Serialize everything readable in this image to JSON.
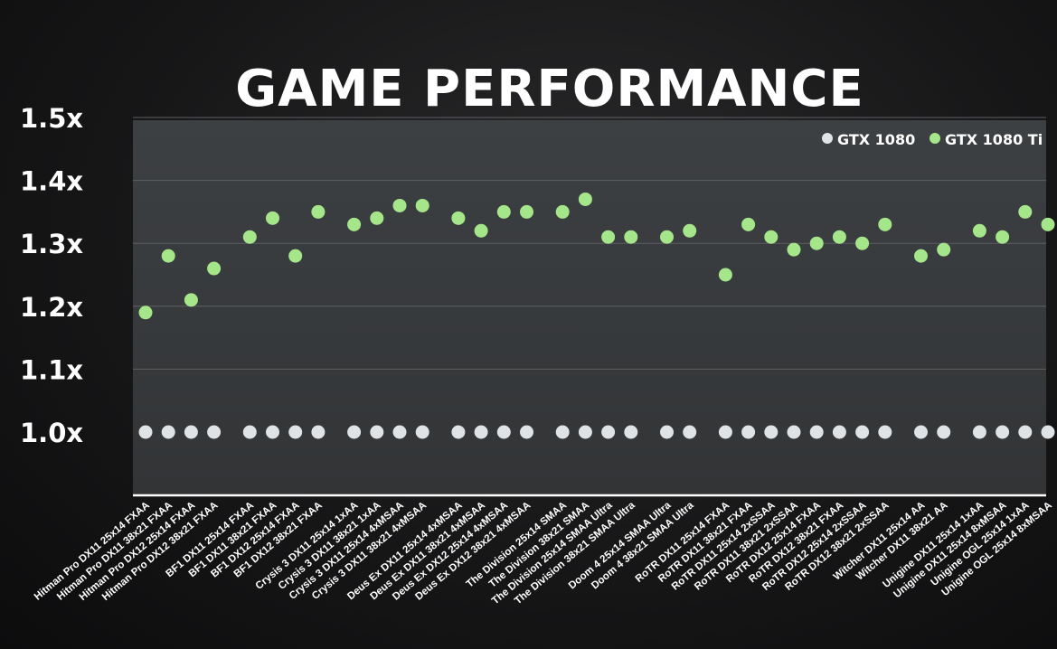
{
  "chart_data": {
    "type": "scatter",
    "title": "GAME PERFORMANCE",
    "xlabel": "",
    "ylabel": "",
    "ylim": [
      1.0,
      1.5
    ],
    "yticks": [
      "1.0x",
      "1.1x",
      "1.2x",
      "1.3x",
      "1.4x",
      "1.5x"
    ],
    "ytick_values": [
      1.0,
      1.1,
      1.2,
      1.3,
      1.4,
      1.5
    ],
    "grid": true,
    "legend_position": "top-right",
    "categories": [
      "Hitman Pro DX11 25x14 FXAA",
      "Hitman Pro DX11 38x21 FXAA",
      "Hitman Pro DX12 25x14 FXAA",
      "Hitman Pro DX12 38x21 FXAA",
      "BF1 DX11 25x14 FXAA",
      "BF1 DX11 38x21 FXAA",
      "BF1 DX12 25x14 FXAA",
      "BF1 DX12 38x21 FXAA",
      "Crysis 3 DX11 25x14 1xAA",
      "Crysis 3 DX11 38x21 1xAA",
      "Crysis 3 DX11 25x14 4xMSAA",
      "Crysis 3 DX11 38x21 4xMSAA",
      "Deus Ex DX11 25x14 4xMSAA",
      "Deus Ex DX11 38x21 4xMSAA",
      "Deus Ex DX12 25x14 4xMSAA",
      "Deus Ex DX12 38x21 4xMSAA",
      "The Division 25x14 SMAA",
      "The Division 38x21 SMAA",
      "The Division 25x14 SMAA Ultra",
      "The Division 38x21 SMAA Ultra",
      "Doom 4 25x14 SMAA Ultra",
      "Doom 4 38x21 SMAA Ultra",
      "RoTR DX11 25x14 FXAA",
      "RoTR DX11 38x21 FXAA",
      "RoTR DX11 25x14 2xSSAA",
      "RoTR DX11 38x21 2xSSAA",
      "RoTR DX12 25x14 FXAA",
      "RoTR DX12 38x21 FXAA",
      "RoTR DX12 25x14 2xSSAA",
      "RoTR DX12 38x21 2xSSAA",
      "Witcher DX11 25x14 AA",
      "Witcher DX11 38x21 AA",
      "Unigine DX11 25x14 1xAA",
      "Unigine DX11 25x14 8xMSAA",
      "Unigine OGL 25x14 1xAA",
      "Unigine OGL 25x14 8xMSAA"
    ],
    "groups": [
      4,
      4,
      4,
      4,
      4,
      2,
      8,
      2,
      4
    ],
    "series": [
      {
        "name": "GTX 1080",
        "color": "#dfe3e6",
        "values": [
          1.0,
          1.0,
          1.0,
          1.0,
          1.0,
          1.0,
          1.0,
          1.0,
          1.0,
          1.0,
          1.0,
          1.0,
          1.0,
          1.0,
          1.0,
          1.0,
          1.0,
          1.0,
          1.0,
          1.0,
          1.0,
          1.0,
          1.0,
          1.0,
          1.0,
          1.0,
          1.0,
          1.0,
          1.0,
          1.0,
          1.0,
          1.0,
          1.0,
          1.0,
          1.0,
          1.0
        ]
      },
      {
        "name": "GTX 1080 Ti",
        "color": "#a6e68a",
        "values": [
          1.19,
          1.28,
          1.21,
          1.26,
          1.31,
          1.34,
          1.28,
          1.35,
          1.33,
          1.34,
          1.36,
          1.36,
          1.34,
          1.32,
          1.35,
          1.35,
          1.35,
          1.37,
          1.31,
          1.31,
          1.31,
          1.32,
          1.25,
          1.33,
          1.31,
          1.29,
          1.3,
          1.31,
          1.3,
          1.33,
          1.28,
          1.29,
          1.32,
          1.31,
          1.35,
          1.33
        ]
      }
    ]
  }
}
